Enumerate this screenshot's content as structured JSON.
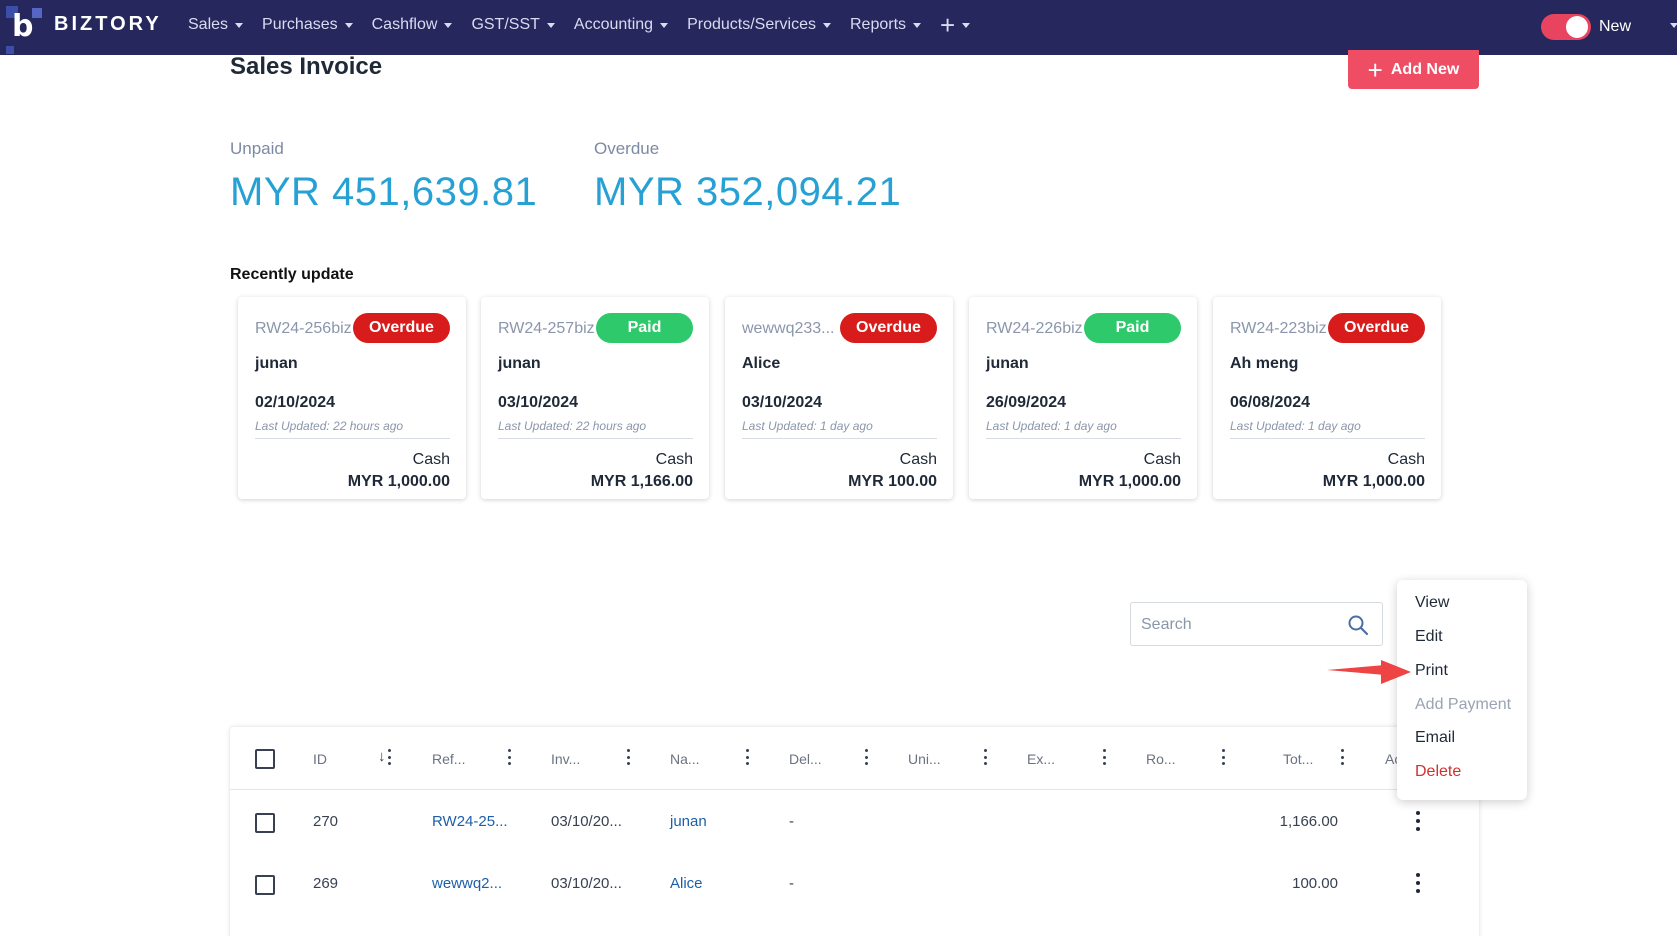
{
  "brand": {
    "name": "BIZTORY",
    "mark": "b"
  },
  "nav": {
    "items": [
      {
        "label": "Sales"
      },
      {
        "label": "Purchases"
      },
      {
        "label": "Cashflow"
      },
      {
        "label": "GST/SST"
      },
      {
        "label": "Accounting"
      },
      {
        "label": "Products/Services"
      },
      {
        "label": "Reports"
      }
    ],
    "plus": "+",
    "toggle_label": "New",
    "toggle_on": true
  },
  "page": {
    "title": "Sales Invoice",
    "add_new_label": "Add New"
  },
  "summary": {
    "unpaid_label": "Unpaid",
    "unpaid_value": "MYR 451,639.81",
    "overdue_label": "Overdue",
    "overdue_value": "MYR 352,094.21"
  },
  "recent": {
    "title": "Recently update",
    "cards": [
      {
        "ref": "RW24-256biz",
        "status": "Overdue",
        "name": "junan",
        "date": "02/10/2024",
        "updated": "Last Updated: 22 hours ago",
        "method": "Cash",
        "amount": "MYR 1,000.00"
      },
      {
        "ref": "RW24-257biz",
        "status": "Paid",
        "name": "junan",
        "date": "03/10/2024",
        "updated": "Last Updated: 22 hours ago",
        "method": "Cash",
        "amount": "MYR 1,166.00"
      },
      {
        "ref": "wewwq233...",
        "status": "Overdue",
        "name": "Alice",
        "date": "03/10/2024",
        "updated": "Last Updated: 1 day ago",
        "method": "Cash",
        "amount": "MYR 100.00"
      },
      {
        "ref": "RW24-226biz",
        "status": "Paid",
        "name": "junan",
        "date": "26/09/2024",
        "updated": "Last Updated: 1 day ago",
        "method": "Cash",
        "amount": "MYR 1,000.00"
      },
      {
        "ref": "RW24-223biz",
        "status": "Overdue",
        "name": "Ah meng",
        "date": "06/08/2024",
        "updated": "Last Updated: 1 day ago",
        "method": "Cash",
        "amount": "MYR 1,000.00"
      }
    ]
  },
  "search": {
    "placeholder": "Search"
  },
  "table": {
    "columns": [
      "ID",
      "Ref...",
      "Inv...",
      "Na...",
      "Del...",
      "Uni...",
      "Ex...",
      "Ro...",
      "Tot...",
      "Ac"
    ],
    "rows": [
      {
        "id": "270",
        "ref": "RW24-25...",
        "inv_date": "03/10/20...",
        "name": "junan",
        "del": "-",
        "total": "1,166.00"
      },
      {
        "id": "269",
        "ref": "wewwq2...",
        "inv_date": "03/10/20...",
        "name": "Alice",
        "del": "-",
        "total": "100.00"
      }
    ]
  },
  "context_menu": {
    "items": [
      {
        "label": "View",
        "state": "normal"
      },
      {
        "label": "Edit",
        "state": "normal"
      },
      {
        "label": "Print",
        "state": "normal"
      },
      {
        "label": "Add Payment",
        "state": "disabled"
      },
      {
        "label": "Email",
        "state": "normal"
      },
      {
        "label": "Delete",
        "state": "danger"
      }
    ]
  },
  "colors": {
    "topbar": "#26275c",
    "accent_pink": "#ee4d63",
    "overdue": "#d81b1b",
    "paid": "#2ec96a",
    "summary_blue": "#27a1d4",
    "link_blue": "#1d5fa8"
  }
}
